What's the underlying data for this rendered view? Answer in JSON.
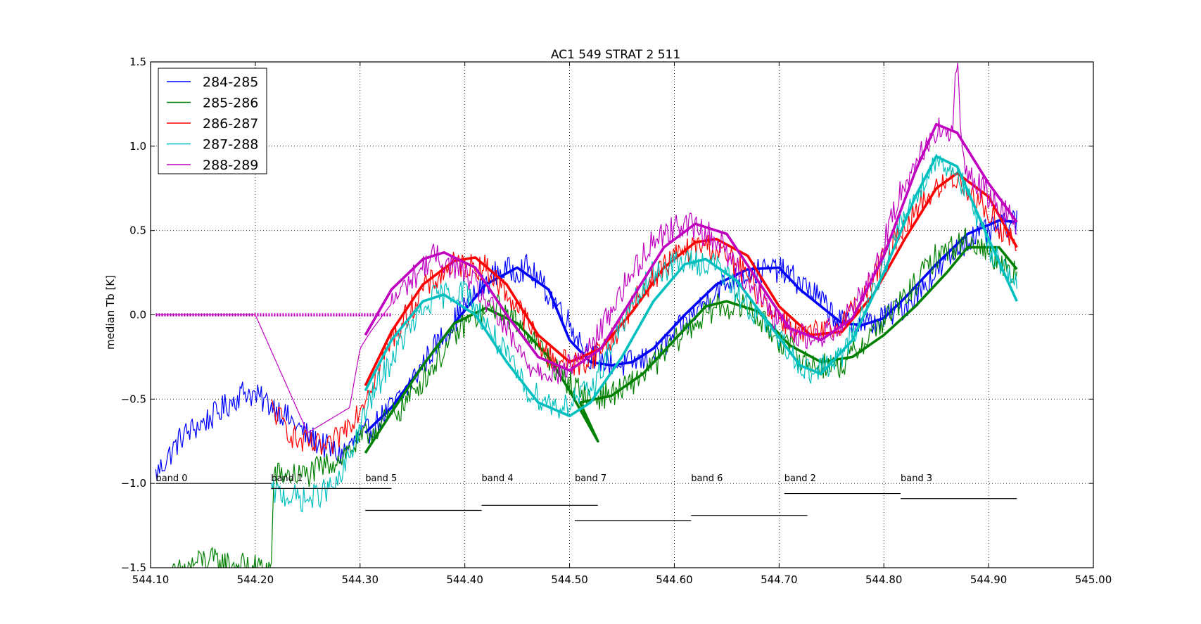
{
  "chart_data": {
    "type": "line",
    "title": "AC1 549 STRAT 2 511",
    "xlabel": "",
    "ylabel": "median Tb [K]",
    "xlim": [
      544.1,
      545.0
    ],
    "ylim": [
      -1.5,
      1.5
    ],
    "xticks": [
      544.1,
      544.2,
      544.3,
      544.4,
      544.5,
      544.6,
      544.7,
      544.8,
      544.9,
      545.0
    ],
    "xtick_labels": [
      "544.10",
      "544.20",
      "544.30",
      "544.40",
      "544.50",
      "544.60",
      "544.70",
      "544.80",
      "544.90",
      "545.00"
    ],
    "yticks": [
      -1.5,
      -1.0,
      -0.5,
      0.0,
      0.5,
      1.0,
      1.5
    ],
    "ytick_labels": [
      "−1.5",
      "−1.0",
      "−0.5",
      "0.0",
      "0.5",
      "1.0",
      "1.5"
    ],
    "grid": true,
    "legend_position": "top-left",
    "colors": {
      "284-285": "#0000ff",
      "285-286": "#008000",
      "286-287": "#ff0000",
      "287-288": "#00bfbf",
      "288-289": "#bf00bf"
    },
    "series": [
      {
        "name": "284-285",
        "x": [
          544.105,
          544.13,
          544.16,
          544.19,
          544.22,
          544.25,
          544.28,
          544.31,
          544.34,
          544.37,
          544.4,
          544.43,
          544.46,
          544.49,
          544.52,
          544.55,
          544.58,
          544.61,
          544.64,
          544.67,
          544.7,
          544.73,
          544.76,
          544.79,
          544.82,
          544.85,
          544.88,
          544.927
        ],
        "y": [
          -0.95,
          -0.72,
          -0.6,
          -0.45,
          -0.55,
          -0.72,
          -0.83,
          -0.68,
          -0.48,
          -0.2,
          0.05,
          0.25,
          0.28,
          0.05,
          -0.25,
          -0.3,
          -0.25,
          -0.05,
          0.15,
          0.25,
          0.27,
          0.15,
          -0.05,
          -0.05,
          0.05,
          0.25,
          0.45,
          0.55
        ],
        "fit": {
          "x": [
            544.305,
            544.33,
            544.36,
            544.39,
            544.42,
            544.45,
            544.48,
            544.5,
            544.52,
            544.54,
            544.56,
            544.58,
            544.61,
            544.64,
            544.67,
            544.7,
            544.72,
            544.74,
            544.76,
            544.78,
            544.8,
            544.82,
            544.85,
            544.88,
            544.91,
            544.927
          ],
          "y": [
            -0.7,
            -0.55,
            -0.3,
            -0.05,
            0.18,
            0.28,
            0.15,
            -0.15,
            -0.28,
            -0.3,
            -0.28,
            -0.2,
            0.0,
            0.18,
            0.27,
            0.28,
            0.15,
            0.05,
            -0.05,
            -0.06,
            -0.02,
            0.1,
            0.3,
            0.48,
            0.56,
            0.55
          ]
        }
      },
      {
        "name": "285-286",
        "x": [
          544.105,
          544.15,
          544.2,
          544.216,
          544.217,
          544.25,
          544.28,
          544.31,
          544.34,
          544.37,
          544.4,
          544.43,
          544.46,
          544.49,
          544.52,
          544.55,
          544.58,
          544.61,
          544.64,
          544.67,
          544.7,
          544.73,
          544.76,
          544.79,
          544.82,
          544.85,
          544.88,
          544.927
        ],
        "y": [
          -1.6,
          -1.45,
          -1.5,
          -1.5,
          -0.95,
          -0.95,
          -0.85,
          -0.7,
          -0.55,
          -0.3,
          -0.05,
          0.05,
          -0.1,
          -0.35,
          -0.5,
          -0.45,
          -0.3,
          -0.1,
          0.05,
          0.05,
          -0.15,
          -0.3,
          -0.3,
          -0.1,
          0.1,
          0.35,
          0.45,
          0.25
        ],
        "fit": {
          "x": [
            544.305,
            544.33,
            544.36,
            544.39,
            544.42,
            544.45,
            544.48,
            544.5,
            544.527,
            544.51,
            544.54,
            544.57,
            544.6,
            544.63,
            544.65,
            544.68,
            544.71,
            544.74,
            544.77,
            544.8,
            544.83,
            544.86,
            544.88,
            544.91,
            544.927
          ],
          "y": [
            -0.82,
            -0.58,
            -0.3,
            -0.05,
            0.04,
            -0.05,
            -0.25,
            -0.45,
            -0.75,
            -0.52,
            -0.48,
            -0.35,
            -0.15,
            0.05,
            0.08,
            0.02,
            -0.18,
            -0.28,
            -0.25,
            -0.12,
            0.05,
            0.25,
            0.4,
            0.4,
            0.27
          ]
        }
      },
      {
        "name": "286-287",
        "x": [
          544.215,
          544.24,
          544.27,
          544.3,
          544.33,
          544.36,
          544.39,
          544.42,
          544.45,
          544.48,
          544.51,
          544.54,
          544.57,
          544.6,
          544.63,
          544.66,
          544.69,
          544.72,
          544.75,
          544.78,
          544.81,
          544.84,
          544.87,
          544.9,
          544.927
        ],
        "y": [
          -0.55,
          -0.75,
          -0.8,
          -0.55,
          -0.15,
          0.15,
          0.3,
          0.28,
          0.05,
          -0.25,
          -0.3,
          -0.15,
          0.15,
          0.35,
          0.42,
          0.3,
          0.05,
          -0.12,
          -0.1,
          0.1,
          0.45,
          0.7,
          0.82,
          0.6,
          0.4
        ],
        "fit": {
          "x": [
            544.305,
            544.33,
            544.36,
            544.39,
            544.41,
            544.44,
            544.47,
            544.5,
            544.53,
            544.56,
            544.59,
            544.62,
            544.64,
            544.67,
            544.7,
            544.73,
            544.76,
            544.79,
            544.82,
            544.85,
            544.87,
            544.9,
            544.927
          ],
          "y": [
            -0.42,
            -0.1,
            0.18,
            0.32,
            0.34,
            0.18,
            -0.12,
            -0.28,
            -0.2,
            0.02,
            0.28,
            0.43,
            0.45,
            0.35,
            0.05,
            -0.12,
            -0.1,
            0.12,
            0.45,
            0.75,
            0.84,
            0.7,
            0.4
          ]
        }
      },
      {
        "name": "287-288",
        "x": [
          544.215,
          544.25,
          544.28,
          544.31,
          544.34,
          544.37,
          544.4,
          544.43,
          544.46,
          544.49,
          544.52,
          544.55,
          544.58,
          544.61,
          544.64,
          544.67,
          544.7,
          544.73,
          544.76,
          544.79,
          544.82,
          544.85,
          544.87,
          544.9,
          544.927
        ],
        "y": [
          -1.05,
          -1.1,
          -1.0,
          -0.5,
          -0.15,
          0.1,
          0.15,
          -0.15,
          -0.45,
          -0.55,
          -0.45,
          -0.05,
          0.25,
          0.32,
          0.3,
          0.05,
          -0.15,
          -0.35,
          -0.25,
          0.15,
          0.6,
          0.92,
          0.85,
          0.4,
          0.2
        ],
        "fit": {
          "x": [
            544.305,
            544.33,
            544.36,
            544.38,
            544.41,
            544.44,
            544.47,
            544.5,
            544.52,
            544.55,
            544.58,
            544.61,
            544.63,
            544.66,
            544.69,
            544.72,
            544.74,
            544.77,
            544.8,
            544.83,
            544.85,
            544.87,
            544.9,
            544.927
          ],
          "y": [
            -0.45,
            -0.15,
            0.08,
            0.12,
            0.0,
            -0.28,
            -0.52,
            -0.6,
            -0.52,
            -0.25,
            0.08,
            0.3,
            0.33,
            0.2,
            -0.05,
            -0.3,
            -0.35,
            -0.15,
            0.25,
            0.7,
            0.94,
            0.88,
            0.45,
            0.08
          ]
        }
      },
      {
        "name": "288-289",
        "x": [
          544.105,
          544.15,
          544.2,
          544.25,
          544.29,
          544.3,
          544.31,
          544.34,
          544.37,
          544.4,
          544.43,
          544.46,
          544.49,
          544.52,
          544.55,
          544.58,
          544.61,
          544.64,
          544.67,
          544.7,
          544.73,
          544.76,
          544.79,
          544.82,
          544.85,
          544.865,
          544.87,
          544.875,
          544.9,
          544.927
        ],
        "y": [
          0.0,
          0.0,
          0.0,
          -0.7,
          -0.55,
          -0.2,
          -0.1,
          0.15,
          0.35,
          0.25,
          0.0,
          -0.3,
          -0.35,
          -0.2,
          0.15,
          0.45,
          0.55,
          0.45,
          0.2,
          -0.05,
          -0.15,
          -0.05,
          0.25,
          0.8,
          1.1,
          1.05,
          1.55,
          0.9,
          0.7,
          0.55
        ],
        "fit": {
          "x": [
            544.305,
            544.33,
            544.36,
            544.38,
            544.41,
            544.44,
            544.47,
            544.5,
            544.53,
            544.56,
            544.59,
            544.62,
            544.65,
            544.68,
            544.71,
            544.74,
            544.77,
            544.8,
            544.83,
            544.85,
            544.87,
            544.9,
            544.927
          ],
          "y": [
            -0.12,
            0.15,
            0.33,
            0.37,
            0.28,
            0.0,
            -0.25,
            -0.33,
            -0.2,
            0.1,
            0.4,
            0.54,
            0.48,
            0.2,
            -0.08,
            -0.15,
            -0.02,
            0.35,
            0.85,
            1.13,
            1.08,
            0.78,
            0.55
          ]
        },
        "flat": {
          "x": [
            544.105,
            544.33
          ],
          "y": [
            0.0,
            0.0
          ]
        }
      }
    ],
    "bands": [
      {
        "label": "band 0",
        "x0": 544.105,
        "x1": 544.215,
        "y": -1.0
      },
      {
        "label": "band 1",
        "x0": 544.215,
        "x1": 544.33,
        "y": -1.03
      },
      {
        "label": "band 5",
        "x0": 544.305,
        "x1": 544.416,
        "y": -1.16
      },
      {
        "label": "band 4",
        "x0": 544.416,
        "x1": 544.527,
        "y": -1.13
      },
      {
        "label": "band 7",
        "x0": 544.505,
        "x1": 544.616,
        "y": -1.22
      },
      {
        "label": "band 6",
        "x0": 544.616,
        "x1": 544.727,
        "y": -1.19
      },
      {
        "label": "band 2",
        "x0": 544.705,
        "x1": 544.816,
        "y": -1.06
      },
      {
        "label": "band 3",
        "x0": 544.816,
        "x1": 544.927,
        "y": -1.09
      }
    ]
  }
}
